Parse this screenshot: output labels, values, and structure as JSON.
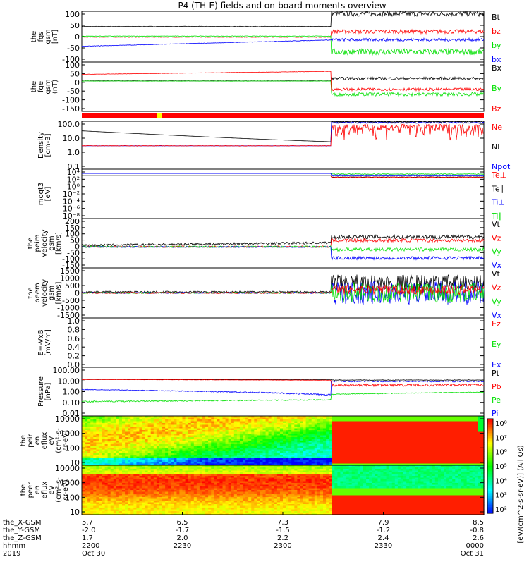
{
  "title": "P4 (TH-E) fields and on-board moments overview",
  "colors": {
    "black": "#000000",
    "red": "#ff0000",
    "green": "#00e000",
    "blue": "#0000ff"
  },
  "panels": [
    {
      "id": "fgs",
      "ylabel": [
        "the",
        "fgs",
        "gsm",
        "[nT]"
      ],
      "ticks": [
        "100",
        "50",
        "0",
        "-50",
        "-100"
      ],
      "ylim": [
        -100,
        100
      ],
      "legend": [
        [
          "Bt",
          "black"
        ],
        [
          "bz",
          "red"
        ],
        [
          "by",
          "green"
        ],
        [
          "bx",
          "blue"
        ]
      ]
    },
    {
      "id": "fge",
      "ylabel": [
        "the",
        "fge",
        "gsm",
        "(nT)"
      ],
      "ticks": [
        "100",
        "50",
        "0",
        "-50",
        "-100",
        "-150"
      ],
      "ylim": [
        -175,
        105
      ],
      "legend": [
        [
          "Bx",
          "black"
        ],
        [
          "By",
          "green"
        ],
        [
          "Bz",
          "red"
        ]
      ]
    },
    {
      "id": "density",
      "ylabel": [
        "Density",
        "[cm-3]"
      ],
      "ticks": [
        "100.0",
        "10.0",
        "1.0",
        "0.1"
      ],
      "ylim": [
        0.02,
        200
      ],
      "log": true,
      "legend": [
        [
          "Ne",
          "red"
        ],
        [
          "Ni",
          "black"
        ],
        [
          "Npot",
          "blue"
        ]
      ]
    },
    {
      "id": "temp",
      "ylabel": [
        "moqt3",
        "[eV]"
      ],
      "ticks": [
        "10⁴",
        "10²",
        "10⁰",
        "10⁻²",
        "10⁻⁴",
        "10⁻⁶",
        "10⁻⁸"
      ],
      "ylim": [
        1e-09,
        100000.0
      ],
      "log": true,
      "legend": [
        [
          "Te⊥",
          "red"
        ],
        [
          "Te∥",
          "black"
        ],
        [
          "Ti⊥",
          "blue"
        ],
        [
          "Ti∥",
          "green"
        ]
      ]
    },
    {
      "id": "peim",
      "ylabel": [
        "the",
        "peim",
        "velocity",
        "gsm",
        "[km/s]"
      ],
      "ticks": [
        "200",
        "150",
        "100",
        "50",
        "0",
        "-50",
        "-100",
        "-150"
      ],
      "ylim": [
        -150,
        200
      ],
      "legend": [
        [
          "Vt",
          "black"
        ],
        [
          "Vz",
          "red"
        ],
        [
          "Vy",
          "green"
        ],
        [
          "Vx",
          "blue"
        ]
      ]
    },
    {
      "id": "peem",
      "ylabel": [
        "the",
        "peem",
        "velocity",
        "gsm",
        "[km/s]"
      ],
      "ticks": [
        "1500",
        "1000",
        "500",
        "0",
        "-500",
        "-1000",
        "-1500"
      ],
      "ylim": [
        -1500,
        1500
      ],
      "legend": [
        [
          "Vt",
          "black"
        ],
        [
          "Vz",
          "red"
        ],
        [
          "Vy",
          "green"
        ],
        [
          "Vx",
          "blue"
        ]
      ]
    },
    {
      "id": "exb",
      "ylabel": [
        "E=-VxB",
        "[mV/m]"
      ],
      "ticks": [
        "1.0",
        "0.8",
        "0.6",
        "0.4",
        "0.2",
        "0.0"
      ],
      "ylim": [
        0,
        1
      ],
      "legend": [
        [
          "Ez",
          "red"
        ],
        [
          "Ey",
          "green"
        ],
        [
          "Ex",
          "blue"
        ]
      ]
    },
    {
      "id": "pressure",
      "ylabel": [
        "Pressure",
        "[nPa]"
      ],
      "ticks": [
        "100.00",
        "10.00",
        "1.00",
        "0.10",
        "0.01"
      ],
      "ylim": [
        0.01,
        100
      ],
      "log": true,
      "legend": [
        [
          "Pt",
          "black"
        ],
        [
          "Pb",
          "red"
        ],
        [
          "Pe",
          "green"
        ],
        [
          "Pi",
          "blue"
        ]
      ]
    },
    {
      "id": "peir",
      "ylabel": [
        "the",
        "peir",
        "en",
        "eflux",
        "eV",
        "(cm²-s-",
        "sr-eV)"
      ],
      "ticks": [
        "10000",
        "1000",
        "100",
        "10"
      ],
      "ylim": [
        5,
        20000
      ],
      "log": true,
      "legend": []
    },
    {
      "id": "peer",
      "ylabel": [
        "the",
        "peer",
        "en",
        "eflux",
        "eV",
        "(cm²-s-",
        "sr-eV)"
      ],
      "ticks": [
        "10000",
        "1000",
        "100",
        "10"
      ],
      "ylim": [
        5,
        20000
      ],
      "log": true,
      "legend": []
    }
  ],
  "colorbar": {
    "label": "[eV/(cm^2-s-sr-eV)] (All Qs)",
    "ticks": [
      "10⁸",
      "10⁷",
      "10⁶",
      "10⁵",
      "10⁴",
      "10³",
      "10²"
    ]
  },
  "xaxis": {
    "rows": [
      {
        "label": "the_X-GSM",
        "values": [
          "5.7",
          "6.5",
          "7.3",
          "7.9",
          "8.5"
        ]
      },
      {
        "label": "the_Y-GSM",
        "values": [
          "-2.0",
          "-1.7",
          "-1.5",
          "-1.2",
          "-0.8"
        ]
      },
      {
        "label": "the_Z-GSM",
        "values": [
          "1.7",
          "2.0",
          "2.2",
          "2.4",
          "2.6"
        ]
      },
      {
        "label": "hhmm",
        "values": [
          "2200",
          "2230",
          "2300",
          "2330",
          "0000"
        ]
      },
      {
        "label": "2019",
        "values": [
          "Oct 30",
          "",
          "",
          "",
          "Oct 31"
        ]
      }
    ]
  },
  "chart_data": {
    "type": "line",
    "title": "P4 (TH-E) fields and on-board moments overview",
    "x_time": [
      "2200",
      "2230",
      "2300",
      "2330",
      "0000"
    ],
    "note_values": "approximate traces read off panels",
    "fgs": {
      "series": [
        {
          "name": "Bt",
          "values": [
            40,
            42,
            45,
            95,
            75
          ]
        },
        {
          "name": "bz",
          "values": [
            -3,
            -2,
            5,
            25,
            15
          ]
        },
        {
          "name": "by",
          "values": [
            0,
            2,
            5,
            -60,
            -45
          ]
        },
        {
          "name": "bx",
          "values": [
            -38,
            -25,
            -10,
            -15,
            -8
          ]
        }
      ]
    },
    "fge": {
      "series": [
        {
          "name": "Bx",
          "values": [
            -2,
            -2,
            0,
            10,
            15
          ]
        },
        {
          "name": "By",
          "values": [
            -3,
            -4,
            -3,
            -80,
            -70
          ]
        },
        {
          "name": "Bz",
          "values": [
            35,
            42,
            52,
            -50,
            -45
          ]
        }
      ]
    },
    "density": {
      "series": [
        {
          "name": "Ne",
          "values": [
            2,
            1.5,
            2,
            50,
            30
          ]
        },
        {
          "name": "Ni",
          "values": [
            30,
            8,
            3,
            200,
            150
          ]
        },
        {
          "name": "Npot",
          "values": [
            2,
            1.5,
            2,
            150,
            150
          ]
        }
      ]
    },
    "pressure": {
      "series": [
        {
          "name": "Pt",
          "values": [
            10,
            10,
            9,
            8,
            9
          ]
        },
        {
          "name": "Pb",
          "values": [
            10,
            10,
            9,
            3,
            4
          ]
        },
        {
          "name": "Pe",
          "values": [
            0.15,
            0.18,
            0.2,
            0.6,
            0.9
          ]
        },
        {
          "name": "Pi",
          "values": [
            1.2,
            0.8,
            0.5,
            6,
            7
          ]
        }
      ]
    }
  }
}
